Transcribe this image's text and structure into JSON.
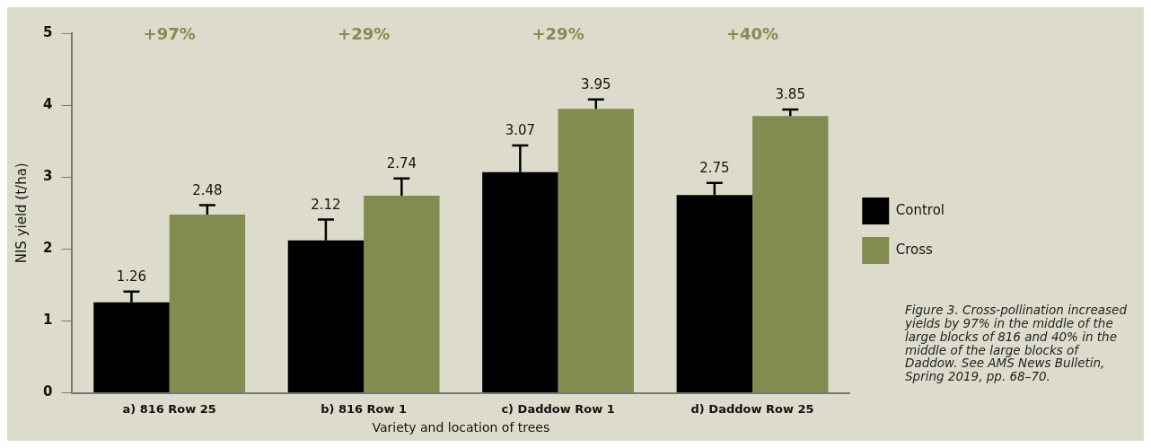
{
  "chart_data": {
    "type": "bar",
    "categories": [
      "a) 816 Row 25",
      "b) 816 Row 1",
      "c) Daddow Row 1",
      "d) Daddow Row 25"
    ],
    "series": [
      {
        "name": "Control",
        "color": "#000000",
        "values": [
          1.26,
          2.12,
          3.07,
          2.75
        ],
        "errors": [
          [
            1.26,
            1.41
          ],
          [
            2.12,
            2.41
          ],
          [
            3.07,
            3.44
          ],
          [
            2.75,
            2.92
          ]
        ]
      },
      {
        "name": "Cross",
        "color": "#838c50",
        "values": [
          2.48,
          2.74,
          3.95,
          3.85
        ],
        "errors": [
          [
            2.48,
            2.61
          ],
          [
            2.74,
            2.98
          ],
          [
            3.95,
            4.08
          ],
          [
            3.85,
            3.94
          ]
        ]
      }
    ],
    "xlabel": "Variety and location of trees",
    "ylabel": "NIS yield (t/ha)",
    "ylim": [
      0,
      5
    ],
    "yticks": [
      0,
      1,
      2,
      3,
      4,
      5
    ],
    "data_labels": true,
    "legend": "right",
    "annotations": [
      "+97%",
      "+29%",
      "+29%",
      "+40%",
      "Figure 3. Cross-pollination increased yields by 97% in the middle of the large blocks of 816 and 40% in the middle of the large blocks of Daddow. See AMS News Bulletin, Spring 2019, pp. 68–70."
    ]
  }
}
